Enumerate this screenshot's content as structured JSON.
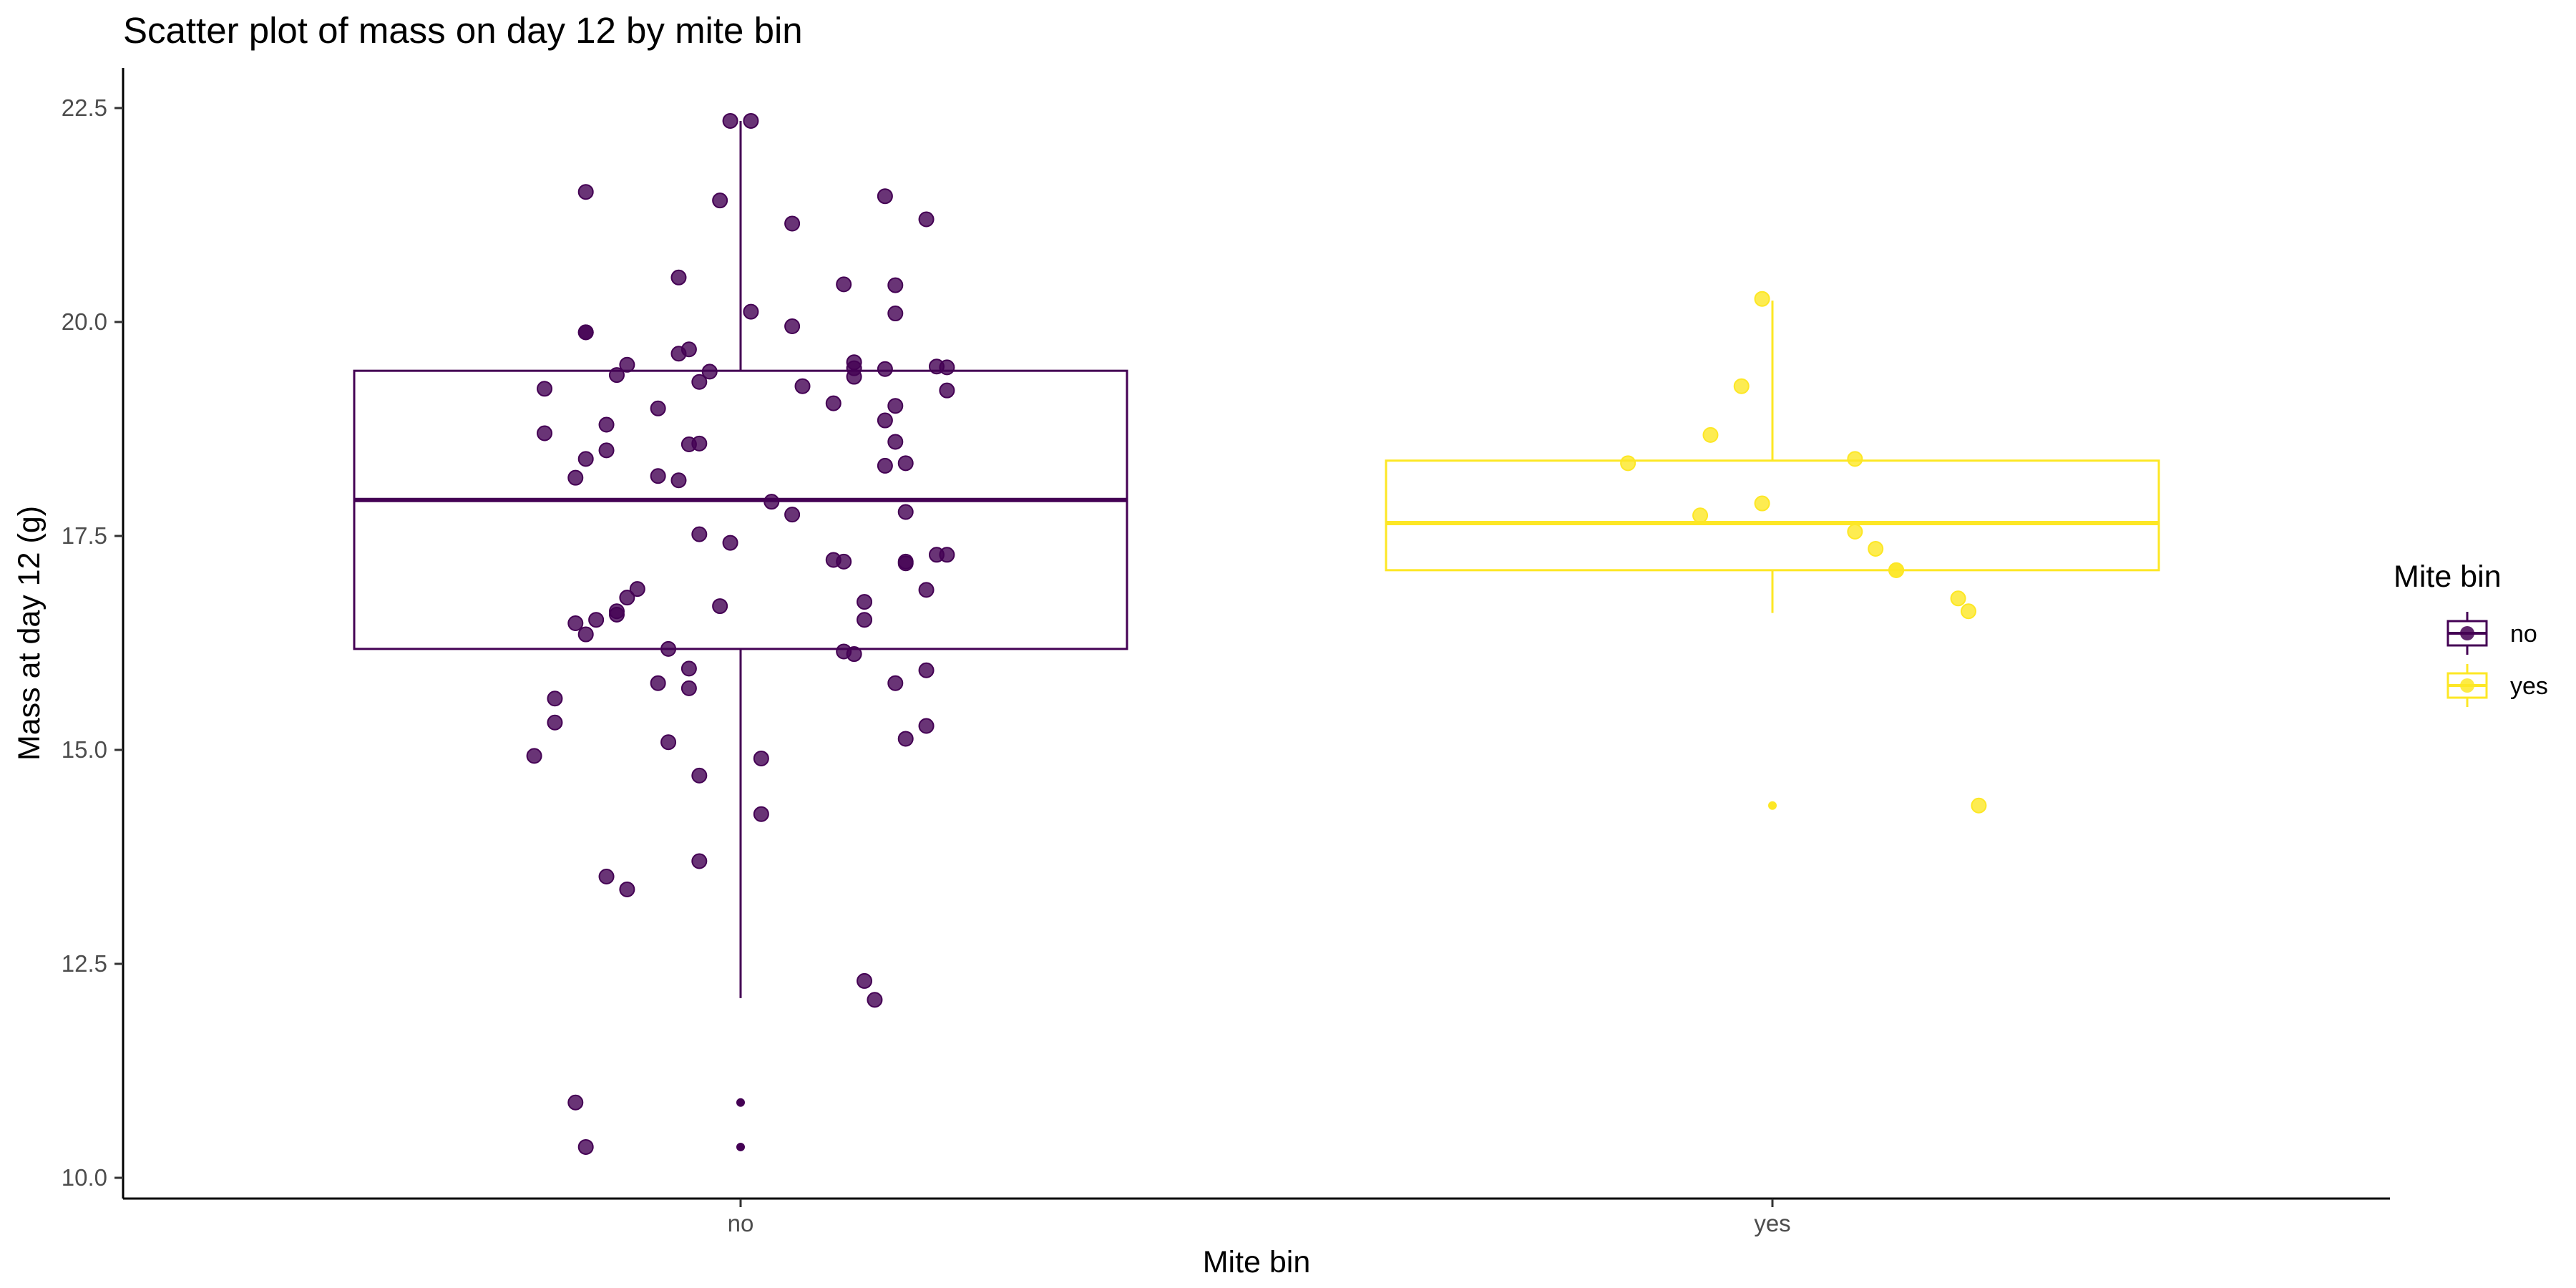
{
  "chart_data": {
    "type": "scatter",
    "subtype": "boxplot with jittered points",
    "title": "Scatter plot of mass on day 12 by mite bin",
    "xlabel": "Mite bin",
    "ylabel": "Mass at day 12 (g)",
    "categories": [
      "no",
      "yes"
    ],
    "ylim": [
      9.8,
      22.8
    ],
    "yticks": [
      10.0,
      12.5,
      15.0,
      17.5,
      20.0,
      22.5
    ],
    "ytick_labels": [
      "10.0",
      "12.5",
      "15.0",
      "17.5",
      "20.0",
      "22.5"
    ],
    "grid": false,
    "legend": {
      "title": "Mite bin",
      "position": "right",
      "entries": [
        "no",
        "yes"
      ]
    },
    "colors": {
      "no": "#440154",
      "yes": "#FDE725"
    },
    "boxes": [
      {
        "category": "no",
        "q1": 16.18,
        "median": 17.92,
        "q3": 19.43,
        "whisker_low": 12.1,
        "whisker_high": 22.35,
        "outliers": [
          10.88,
          10.36
        ]
      },
      {
        "category": "yes",
        "q1": 17.1,
        "median": 17.65,
        "q3": 18.38,
        "whisker_low": 16.6,
        "whisker_high": 20.25,
        "outliers": [
          14.35
        ]
      }
    ],
    "series": [
      {
        "name": "no",
        "points": [
          [
            -0.01,
            22.35
          ],
          [
            0.01,
            22.35
          ],
          [
            -0.15,
            21.52
          ],
          [
            -0.02,
            21.42
          ],
          [
            0.14,
            21.47
          ],
          [
            0.18,
            21.2
          ],
          [
            0.05,
            21.15
          ],
          [
            -0.06,
            20.52
          ],
          [
            0.1,
            20.44
          ],
          [
            0.15,
            20.43
          ],
          [
            0.15,
            20.1
          ],
          [
            0.01,
            20.12
          ],
          [
            0.05,
            19.95
          ],
          [
            -0.15,
            19.88
          ],
          [
            -0.15,
            19.88
          ],
          [
            -0.05,
            19.68
          ],
          [
            -0.06,
            19.63
          ],
          [
            0.11,
            19.53
          ],
          [
            -0.11,
            19.5
          ],
          [
            0.11,
            19.46
          ],
          [
            0.14,
            19.45
          ],
          [
            0.19,
            19.48
          ],
          [
            0.2,
            19.47
          ],
          [
            -0.03,
            19.42
          ],
          [
            -0.12,
            19.38
          ],
          [
            0.11,
            19.36
          ],
          [
            -0.04,
            19.3
          ],
          [
            0.06,
            19.25
          ],
          [
            -0.19,
            19.22
          ],
          [
            0.2,
            19.2
          ],
          [
            0.15,
            19.02
          ],
          [
            0.09,
            19.05
          ],
          [
            -0.08,
            18.99
          ],
          [
            0.14,
            18.85
          ],
          [
            -0.13,
            18.8
          ],
          [
            -0.19,
            18.7
          ],
          [
            -0.04,
            18.58
          ],
          [
            -0.05,
            18.57
          ],
          [
            0.15,
            18.6
          ],
          [
            -0.13,
            18.5
          ],
          [
            -0.15,
            18.4
          ],
          [
            0.16,
            18.35
          ],
          [
            0.14,
            18.32
          ],
          [
            -0.08,
            18.2
          ],
          [
            -0.16,
            18.18
          ],
          [
            -0.06,
            18.15
          ],
          [
            0.03,
            17.9
          ],
          [
            0.05,
            17.75
          ],
          [
            0.16,
            17.78
          ],
          [
            -0.04,
            17.52
          ],
          [
            -0.01,
            17.42
          ],
          [
            0.09,
            17.22
          ],
          [
            0.1,
            17.2
          ],
          [
            0.19,
            17.28
          ],
          [
            0.2,
            17.28
          ],
          [
            0.16,
            17.2
          ],
          [
            0.16,
            17.18
          ],
          [
            -0.1,
            16.88
          ],
          [
            0.18,
            16.87
          ],
          [
            -0.11,
            16.78
          ],
          [
            0.12,
            16.73
          ],
          [
            -0.12,
            16.62
          ],
          [
            -0.12,
            16.58
          ],
          [
            -0.14,
            16.52
          ],
          [
            -0.02,
            16.68
          ],
          [
            -0.16,
            16.48
          ],
          [
            -0.15,
            16.35
          ],
          [
            0.12,
            16.52
          ],
          [
            -0.07,
            16.18
          ],
          [
            0.1,
            16.15
          ],
          [
            0.11,
            16.12
          ],
          [
            -0.05,
            15.95
          ],
          [
            0.18,
            15.93
          ],
          [
            -0.08,
            15.78
          ],
          [
            -0.05,
            15.72
          ],
          [
            0.15,
            15.78
          ],
          [
            -0.18,
            15.6
          ],
          [
            -0.18,
            15.32
          ],
          [
            0.18,
            15.28
          ],
          [
            0.16,
            15.13
          ],
          [
            -0.07,
            15.09
          ],
          [
            -0.2,
            14.93
          ],
          [
            0.02,
            14.9
          ],
          [
            -0.04,
            14.7
          ],
          [
            0.02,
            14.25
          ],
          [
            -0.04,
            13.7
          ],
          [
            -0.13,
            13.52
          ],
          [
            -0.11,
            13.37
          ],
          [
            0.12,
            12.3
          ],
          [
            0.13,
            12.08
          ],
          [
            -0.16,
            10.88
          ],
          [
            -0.15,
            10.36
          ]
        ]
      },
      {
        "name": "yes",
        "points": [
          [
            -0.01,
            20.27
          ],
          [
            -0.03,
            19.25
          ],
          [
            -0.06,
            18.68
          ],
          [
            0.08,
            18.4
          ],
          [
            -0.14,
            18.35
          ],
          [
            -0.01,
            17.88
          ],
          [
            -0.07,
            17.74
          ],
          [
            0.08,
            17.55
          ],
          [
            0.1,
            17.35
          ],
          [
            0.12,
            17.1
          ],
          [
            0.12,
            17.1
          ],
          [
            0.18,
            16.77
          ],
          [
            0.19,
            16.62
          ],
          [
            0.2,
            14.35
          ]
        ]
      }
    ]
  }
}
